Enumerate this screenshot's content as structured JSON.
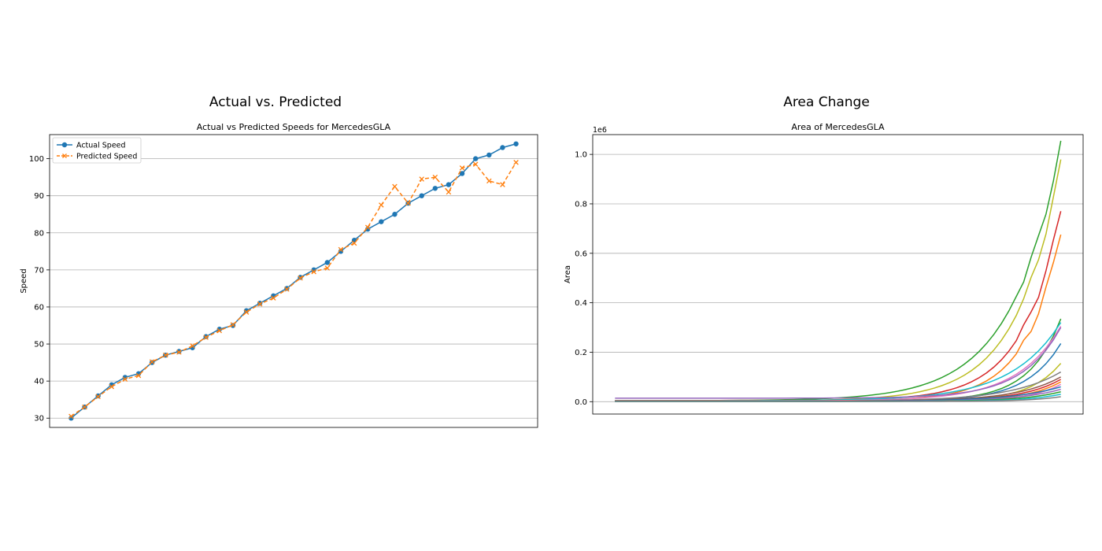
{
  "panels": {
    "left_title": "Actual vs. Predicted",
    "right_title": "Area Change"
  },
  "chart_data": [
    {
      "type": "line",
      "title": "Actual vs Predicted Speeds for MercedesGLA",
      "xlabel": "",
      "ylabel": "Speed",
      "ylim": [
        27.5,
        106.5
      ],
      "yticks": [
        30,
        40,
        50,
        60,
        70,
        80,
        90,
        100
      ],
      "grid": "horizontal",
      "legend_position": "upper-left",
      "x": [
        0,
        1,
        2,
        3,
        4,
        5,
        6,
        7,
        8,
        9,
        10,
        11,
        12,
        13,
        14,
        15,
        16,
        17,
        18,
        19,
        20,
        21,
        22,
        23,
        24,
        25,
        26,
        27,
        28,
        29,
        30,
        31,
        32,
        33
      ],
      "series": [
        {
          "name": "Actual Speed",
          "color": "#1f77b4",
          "style": "solid",
          "marker": "circle",
          "values": [
            30,
            33,
            36,
            39,
            41,
            42,
            45,
            47,
            48,
            49,
            52,
            54,
            55,
            59,
            61,
            63,
            65,
            68,
            70,
            72,
            75,
            78,
            81,
            83,
            85,
            88,
            90,
            92,
            93,
            96,
            100,
            101,
            103,
            104
          ]
        },
        {
          "name": "Predicted Speed",
          "color": "#ff7f0e",
          "style": "dashed",
          "marker": "x",
          "values": [
            30.5,
            33,
            35.8,
            38.5,
            40.5,
            41.5,
            45.2,
            47,
            47.8,
            49.5,
            51.8,
            53.6,
            55.2,
            58.6,
            60.8,
            62.4,
            64.8,
            67.8,
            69.5,
            70.5,
            75.5,
            77.2,
            81.5,
            87.5,
            92.5,
            88,
            94.5,
            95,
            91,
            97.5,
            98.5,
            94,
            93,
            99
          ]
        }
      ]
    },
    {
      "type": "line",
      "title": "Area of MercedesGLA",
      "xlabel": "",
      "ylabel": "Area",
      "offset_label": "1e6",
      "ylim": [
        -0.05,
        1.08
      ],
      "yticks": [
        0.0,
        0.2,
        0.4,
        0.6,
        0.8,
        1.0
      ],
      "ytick_labels": [
        "0.0",
        "0.2",
        "0.4",
        "0.6",
        "0.8",
        "1.0"
      ],
      "grid": "horizontal",
      "x_range": [
        0,
        1
      ],
      "growth_shape": "exponential",
      "series": [
        {
          "color": "#2ca02c",
          "start": 0.004,
          "end": 1.04
        },
        {
          "color": "#bcbd22",
          "start": 0.003,
          "end": 0.97
        },
        {
          "color": "#d62728",
          "start": 0.005,
          "end": 0.775
        },
        {
          "color": "#ff7f0e",
          "start": 0.004,
          "end": 0.69
        },
        {
          "color": "#2ca02c",
          "start": 0.003,
          "end": 0.335
        },
        {
          "color": "#17becf",
          "start": 0.004,
          "end": 0.32
        },
        {
          "color": "#e377c2",
          "start": 0.003,
          "end": 0.305
        },
        {
          "color": "#9467bd",
          "start": 0.014,
          "end": 0.3
        },
        {
          "color": "#1f77b4",
          "start": 0.002,
          "end": 0.235
        },
        {
          "color": "#bcbd22",
          "start": 0.002,
          "end": 0.155
        },
        {
          "color": "#7f7f7f",
          "start": 0.002,
          "end": 0.12
        },
        {
          "color": "#8c564b",
          "start": 0.002,
          "end": 0.1
        },
        {
          "color": "#d62728",
          "start": 0.002,
          "end": 0.09
        },
        {
          "color": "#ff7f0e",
          "start": 0.002,
          "end": 0.08
        },
        {
          "color": "#e377c2",
          "start": 0.002,
          "end": 0.07
        },
        {
          "color": "#1f77b4",
          "start": 0.001,
          "end": 0.06
        },
        {
          "color": "#9467bd",
          "start": 0.001,
          "end": 0.05
        },
        {
          "color": "#2ca02c",
          "start": 0.001,
          "end": 0.04
        },
        {
          "color": "#17becf",
          "start": 0.001,
          "end": 0.03
        },
        {
          "color": "#7f7f7f",
          "start": 0.001,
          "end": 0.02
        }
      ]
    }
  ]
}
